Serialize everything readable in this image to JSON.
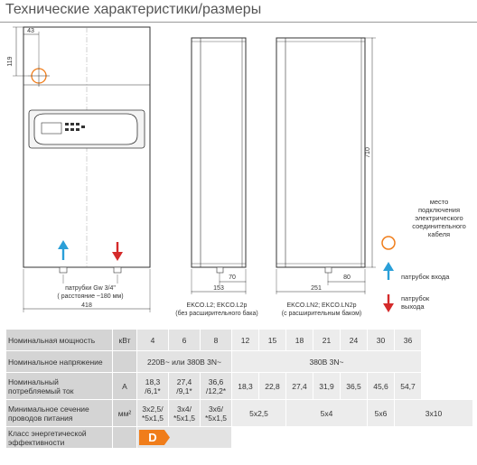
{
  "title": "Технические характеристики/размеры",
  "dims": {
    "d43": "43",
    "d119": "119",
    "d418": "418",
    "d153": "153",
    "d70": "70",
    "d251": "251",
    "d80": "80",
    "d710": "710"
  },
  "captions": {
    "pipes_line1": "патрубки Gw 3/4\"",
    "pipes_line2": "( расстояние ~180 мм)",
    "side1_line1": "EKCO.L2; EKCO.L2p",
    "side1_line2": "(без расширительного бака)",
    "side2_line1": "EKCO.LN2; EKCO.LN2p",
    "side2_line2": "(с расширительным баком)"
  },
  "legend": {
    "cable": [
      "место",
      "подключения",
      "электрического",
      "соединительного",
      "кабеля"
    ],
    "inlet": "патрубок входа",
    "outlet": [
      "патрубок",
      "выхода"
    ]
  },
  "colors": {
    "orange": "#f07d1a",
    "inlet_blue": "#2a9fd8",
    "outlet_red": "#d42a2a"
  },
  "table": {
    "rows": [
      {
        "label": "Номинальная мощность",
        "unit": "кВт",
        "cells": [
          {
            "t": "4",
            "s": 1
          },
          {
            "t": "6",
            "s": 1
          },
          {
            "t": "8",
            "s": 1
          },
          {
            "t": "12",
            "s": 1
          },
          {
            "t": "15",
            "s": 1
          },
          {
            "t": "18",
            "s": 1
          },
          {
            "t": "21",
            "s": 1
          },
          {
            "t": "24",
            "s": 1
          },
          {
            "t": "30",
            "s": 1
          },
          {
            "t": "36",
            "s": 1
          }
        ]
      },
      {
        "label": "Номинальное напряжение",
        "unit": "",
        "cells": [
          {
            "t": "220В~ или 380В 3N~",
            "s": 3
          },
          {
            "t": "380В 3N~",
            "s": 7
          }
        ]
      },
      {
        "label": "Номинальный потребляемый ток",
        "unit": "А",
        "cells": [
          {
            "t": "18,3 /6,1*",
            "s": 1
          },
          {
            "t": "27,4 /9,1*",
            "s": 1
          },
          {
            "t": "36,6 /12,2*",
            "s": 1
          },
          {
            "t": "18,3",
            "s": 1
          },
          {
            "t": "22,8",
            "s": 1
          },
          {
            "t": "27,4",
            "s": 1
          },
          {
            "t": "31,9",
            "s": 1
          },
          {
            "t": "36,5",
            "s": 1
          },
          {
            "t": "45,6",
            "s": 1
          },
          {
            "t": "54,7",
            "s": 1
          }
        ]
      },
      {
        "label": "Минимальное сечение проводов питания",
        "unit": "мм²",
        "cells": [
          {
            "t": "3x2,5/ *5x1,5",
            "s": 1
          },
          {
            "t": "3x4/ *5x1,5",
            "s": 1
          },
          {
            "t": "3x6/ *5x1,5",
            "s": 1
          },
          {
            "t": "5x2,5",
            "s": 2
          },
          {
            "t": "5x4",
            "s": 3
          },
          {
            "t": "5x6",
            "s": 1
          },
          {
            "t": "3x10",
            "s": 2
          }
        ]
      },
      {
        "label": "Класс энергетической эффективности",
        "unit": "",
        "badge": "D"
      }
    ]
  }
}
